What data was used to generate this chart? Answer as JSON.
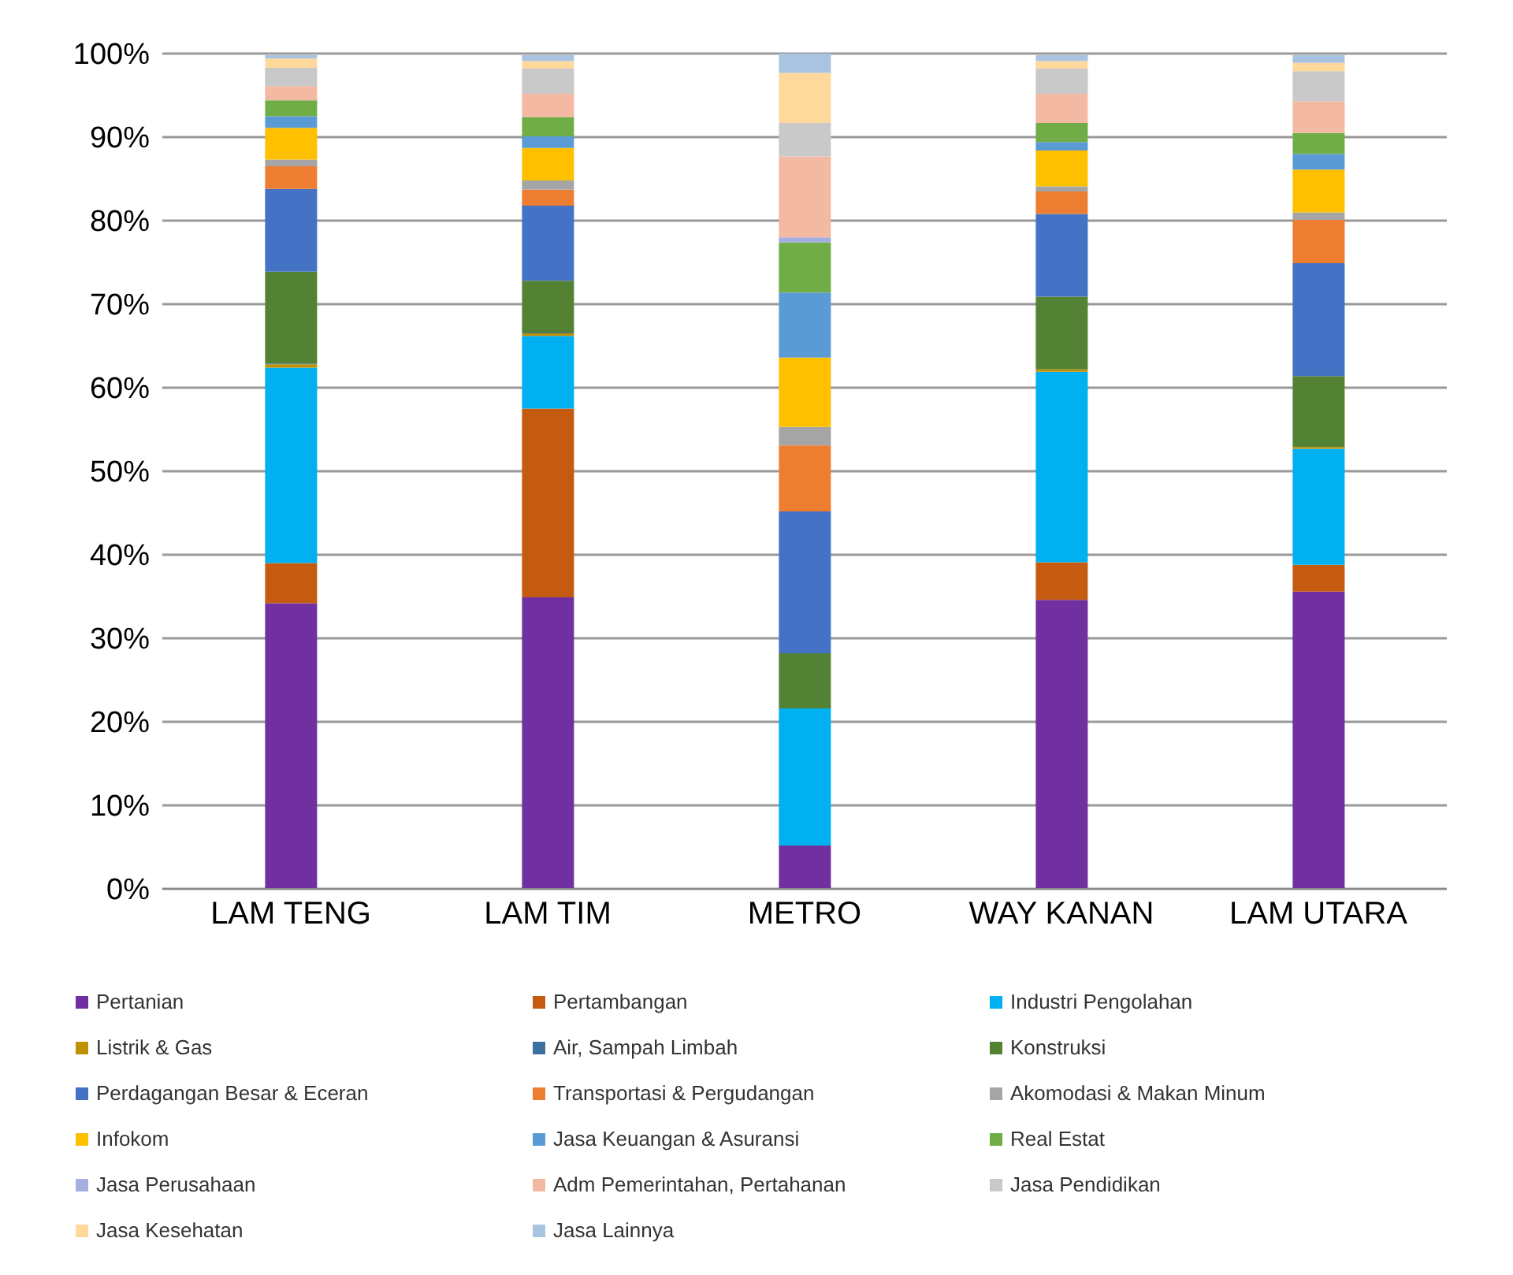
{
  "chart_data": {
    "type": "bar",
    "stacked": true,
    "categories": [
      "LAM TENG",
      "LAM TIM",
      "METRO",
      "WAY KANAN",
      "LAM UTARA"
    ],
    "ylim": [
      0,
      100
    ],
    "yticks": [
      {
        "value": 0,
        "label": "0%"
      },
      {
        "value": 10,
        "label": "10%"
      },
      {
        "value": 20,
        "label": "20%"
      },
      {
        "value": 30,
        "label": "30%"
      },
      {
        "value": 40,
        "label": "40%"
      },
      {
        "value": 50,
        "label": "50%"
      },
      {
        "value": 60,
        "label": "60%"
      },
      {
        "value": 70,
        "label": "70%"
      },
      {
        "value": 80,
        "label": "80%"
      },
      {
        "value": 90,
        "label": "90%"
      },
      {
        "value": 100,
        "label": "100%"
      }
    ],
    "grid": "y",
    "legend": "bottom",
    "series": [
      {
        "name": "Pertanian",
        "color": "#7030a0",
        "values": [
          34.2,
          34.9,
          5.2,
          34.6,
          35.6
        ]
      },
      {
        "name": "Pertambangan",
        "color": "#c55a11",
        "values": [
          4.8,
          22.6,
          0,
          4.5,
          3.2
        ]
      },
      {
        "name": "Industri Pengolahan",
        "color": "#00b0f0",
        "values": [
          23.4,
          8.7,
          16.4,
          22.8,
          13.9
        ]
      },
      {
        "name": "Listrik & Gas",
        "color": "#bf9000",
        "values": [
          0.4,
          0.3,
          0,
          0.3,
          0.2
        ]
      },
      {
        "name": "Air, Sampah Limbah",
        "color": "#3f6f9f",
        "values": [
          0.1,
          0.1,
          0,
          0,
          0
        ]
      },
      {
        "name": "Konstruksi",
        "color": "#548235",
        "values": [
          11.0,
          6.2,
          6.6,
          8.7,
          8.5
        ]
      },
      {
        "name": "Perdagangan Besar & Eceran",
        "color": "#4472c4",
        "values": [
          9.9,
          9.0,
          17.0,
          9.9,
          13.5
        ]
      },
      {
        "name": "Transportasi & Pergudangan",
        "color": "#ed7d31",
        "values": [
          2.7,
          1.9,
          7.9,
          2.7,
          5.2
        ]
      },
      {
        "name": "Akomodasi & Makan Minum",
        "color": "#a5a5a5",
        "values": [
          0.8,
          1.1,
          2.2,
          0.6,
          0.9
        ]
      },
      {
        "name": "Infokom",
        "color": "#ffc000",
        "values": [
          3.8,
          3.9,
          8.3,
          4.3,
          5.1
        ]
      },
      {
        "name": "Jasa Keuangan & Asuransi",
        "color": "#5b9bd5",
        "values": [
          1.4,
          1.4,
          7.8,
          1.0,
          1.9
        ]
      },
      {
        "name": "Real Estat",
        "color": "#70ad47",
        "values": [
          1.9,
          2.3,
          6.0,
          2.3,
          2.5
        ]
      },
      {
        "name": "Jasa Perusahaan",
        "color": "#a4aee0",
        "values": [
          null,
          null,
          0.6,
          null,
          null
        ]
      },
      {
        "name": "Adm Pemerintahan, Pertahanan",
        "color": "#f4b9a3",
        "values": [
          1.7,
          2.8,
          9.7,
          3.5,
          3.8
        ]
      },
      {
        "name": "Jasa Pendidikan",
        "color": "#c9c9c9",
        "values": [
          2.2,
          3.0,
          4.0,
          3.0,
          3.6
        ]
      },
      {
        "name": "Jasa Kesehatan",
        "color": "#ffd89c",
        "values": [
          1.1,
          0.9,
          6.0,
          0.9,
          1.0
        ]
      },
      {
        "name": "Jasa Lainnya",
        "color": "#a9c4e0",
        "values": [
          0.4,
          0.7,
          2.3,
          0.7,
          0.9
        ]
      }
    ]
  }
}
